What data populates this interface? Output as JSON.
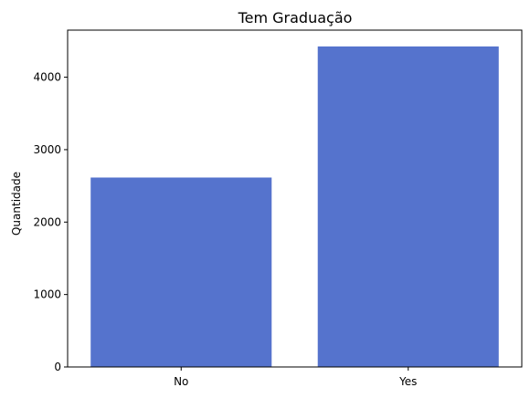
{
  "chart_data": {
    "type": "bar",
    "title": "Tem Graduação",
    "xlabel": "",
    "ylabel": "Quantidade",
    "categories": [
      "No",
      "Yes"
    ],
    "values": [
      2615,
      4425
    ],
    "ylim": [
      0,
      4650
    ],
    "yticks": [
      0,
      1000,
      2000,
      3000,
      4000
    ],
    "bar_color": "#5573cd",
    "grid": false
  }
}
